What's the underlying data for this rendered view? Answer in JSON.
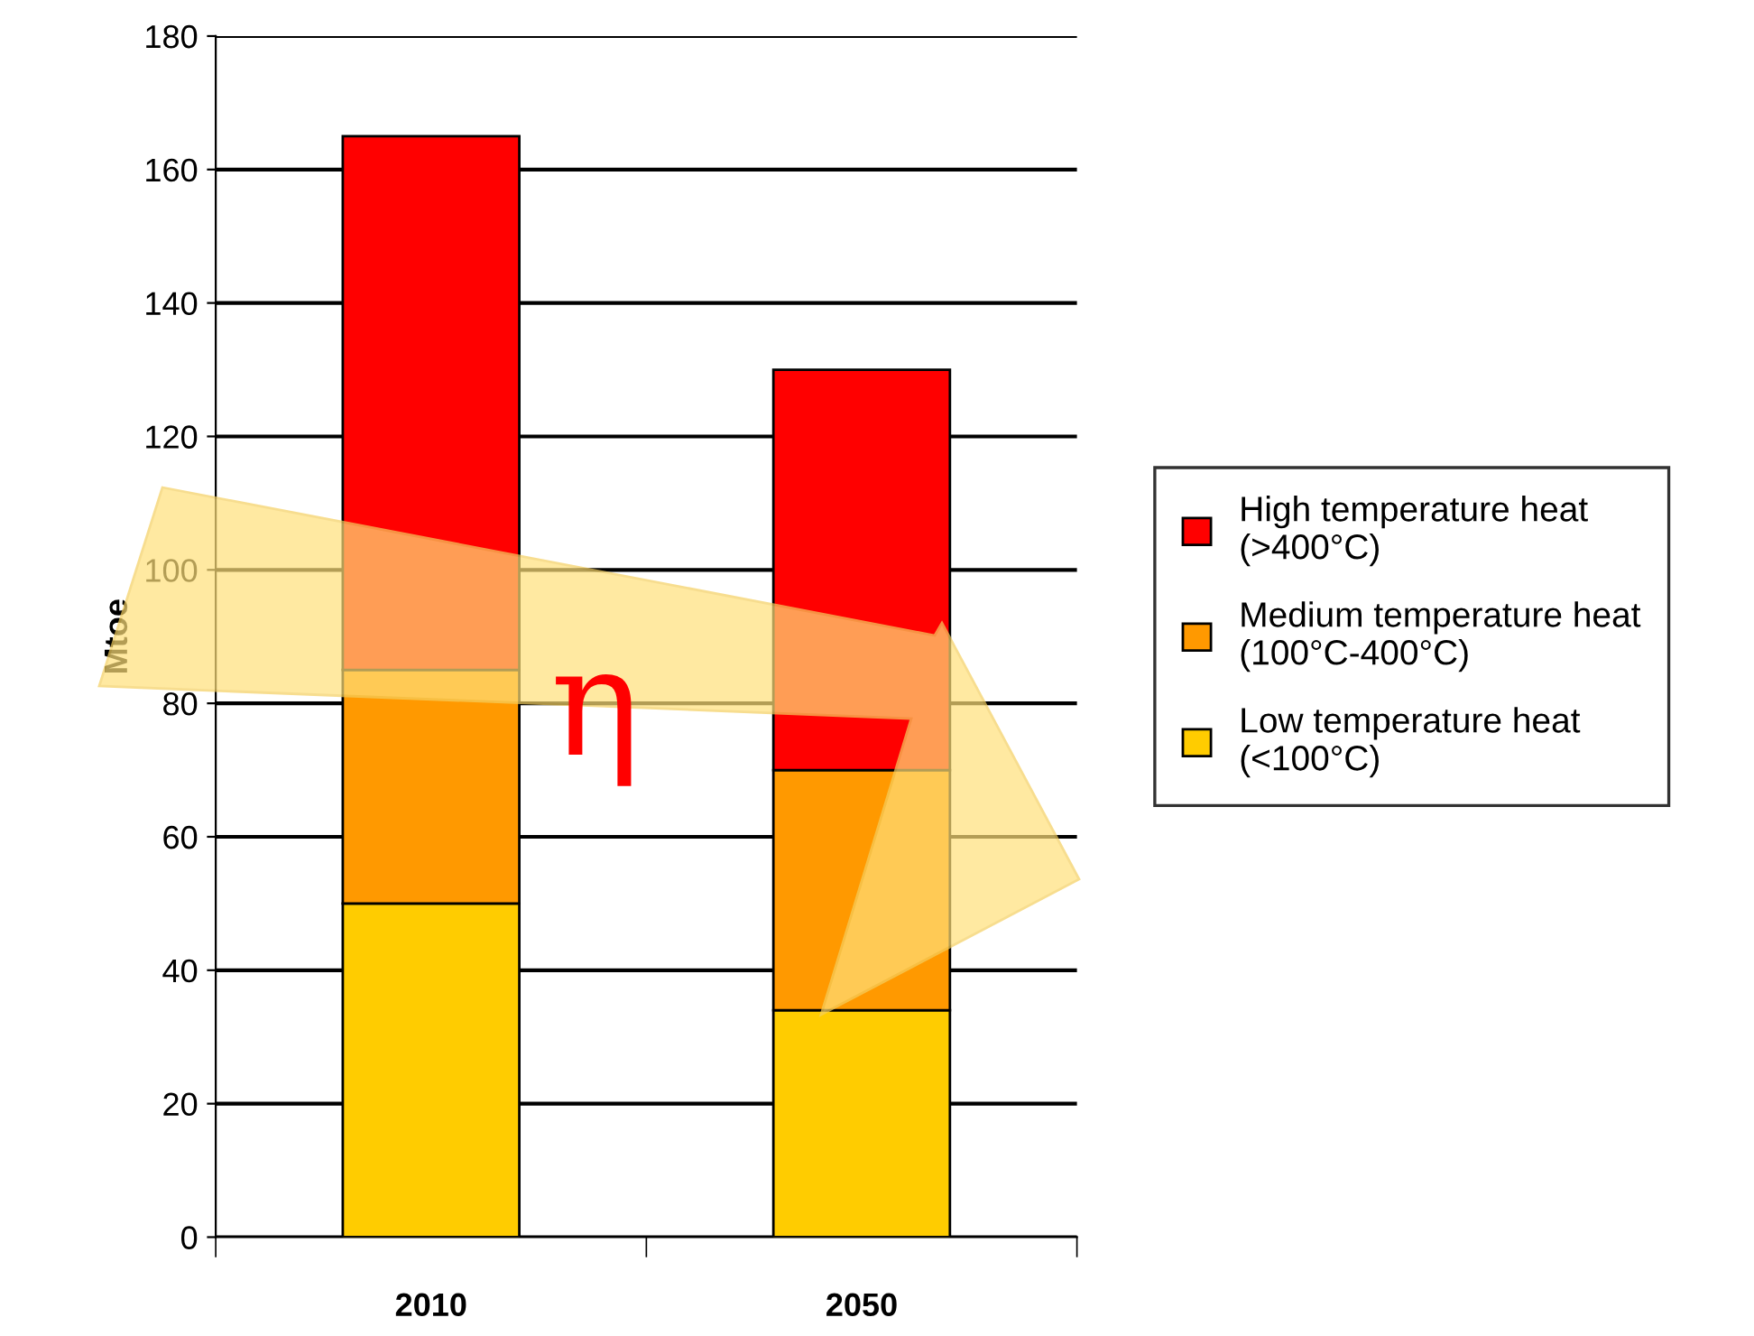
{
  "chart_data": {
    "type": "bar",
    "stacked": true,
    "categories": [
      "2010",
      "2050"
    ],
    "series": [
      {
        "name": "Low temperature heat\n(<100°C)",
        "color": "#ffcc00",
        "values": [
          50,
          34
        ]
      },
      {
        "name": "Medium temperature heat\n(100°C-400°C)",
        "color": "#ff9900",
        "values": [
          35,
          36
        ]
      },
      {
        "name": "High temperature heat\n(>400°C)",
        "color": "#ff0000",
        "values": [
          80,
          60
        ]
      }
    ],
    "ylabel": "Mtoe",
    "ylim": [
      0,
      180
    ],
    "yticks": [
      0,
      20,
      40,
      60,
      80,
      100,
      120,
      140,
      160,
      180
    ],
    "grid": "y",
    "legend": "right",
    "annotations": [
      "η"
    ]
  }
}
